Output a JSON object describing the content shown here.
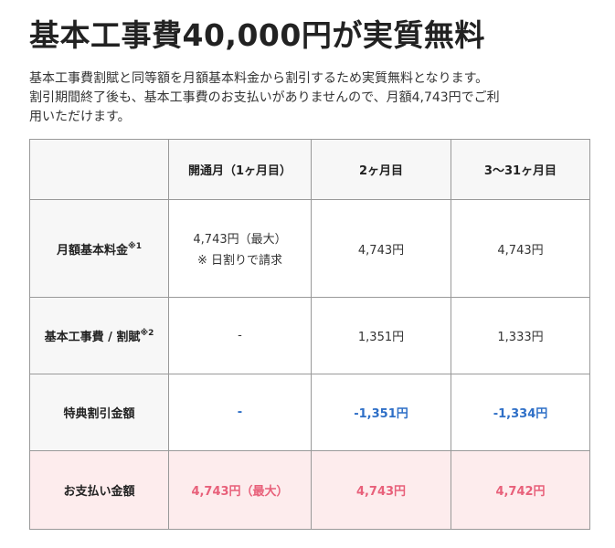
{
  "title": "基本工事費40,000円が実質無料",
  "description": [
    "基本工事費割賦と同等額を月額基本料金から割引するため実質無料となります。",
    "割引期間終了後も、基本工事費のお支払いがありませんので、月額4,743円でご利",
    "用いただけます。"
  ],
  "table": {
    "headers": [
      "",
      "開通月（1ヶ月目）",
      "2ヶ月目",
      "3〜31ヶ月目"
    ],
    "rows": [
      {
        "label": "月額基本料金",
        "sup": "※1",
        "cells": [
          "4,743円（最大）",
          "4,743円",
          "4,743円"
        ],
        "note": "※ 日割りで請求"
      },
      {
        "label": "基本工事費 / 割賦",
        "sup": "※2",
        "cells": [
          "-",
          "1,351円",
          "1,333円"
        ]
      },
      {
        "label": "特典割引金額",
        "cells": [
          "-",
          "-1,351円",
          "-1,334円"
        ]
      },
      {
        "label": "お支払い金額",
        "cells": [
          "4,743円（最大）",
          "4,743円",
          "4,742円"
        ]
      }
    ]
  },
  "colors": {
    "discount_text": "#2e6fc7",
    "payment_text": "#e8607a",
    "payment_row_bg": "#fdeced"
  }
}
